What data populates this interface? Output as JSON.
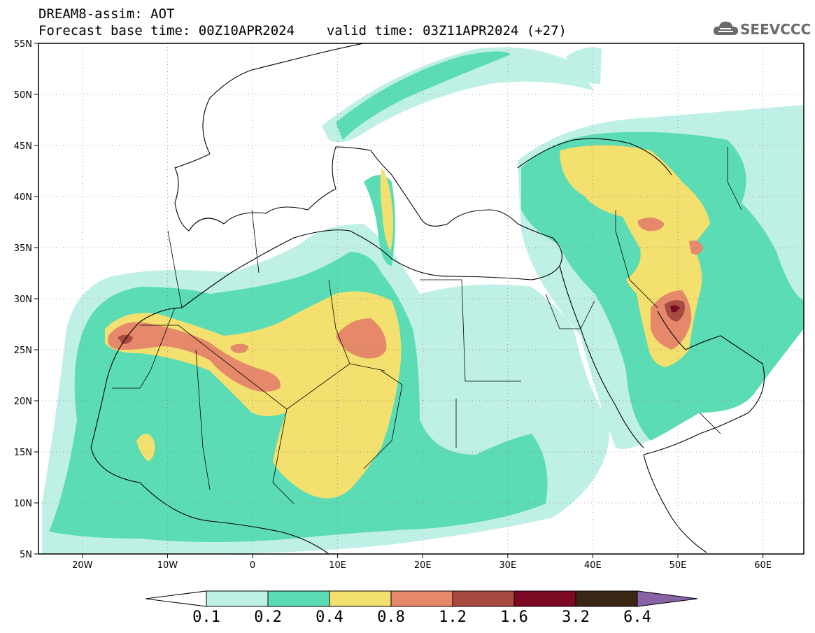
{
  "header": {
    "model": "DREAM8-assim: AOT",
    "base_time_label": "Forecast base time: 00Z10APR2024",
    "valid_time_label": "valid time: 03Z11APR2024 (+27)"
  },
  "logo": {
    "text": "SEEVCCC",
    "icon": "cloud-icon"
  },
  "map": {
    "projection": "lat-lon",
    "lon_range": [
      -25,
      65
    ],
    "lat_range": [
      5,
      55
    ],
    "lat_ticks": [
      "55N",
      "50N",
      "45N",
      "40N",
      "35N",
      "30N",
      "25N",
      "20N",
      "15N",
      "10N",
      "5N"
    ],
    "lon_ticks": [
      "20W",
      "10W",
      "0",
      "10E",
      "20E",
      "30E",
      "40E",
      "50E",
      "60E"
    ],
    "grid": "dotted"
  },
  "colorbar": {
    "labels": [
      "0.1",
      "0.2",
      "0.4",
      "0.8",
      "1.2",
      "1.6",
      "3.2",
      "6.4"
    ],
    "colors": {
      "under": "#ffffff",
      "c1": "#bff0e6",
      "c2": "#5cdcb4",
      "c3": "#f3e06e",
      "c4": "#e5896a",
      "c5": "#a84a3f",
      "c6": "#7c0a24",
      "c7": "#3b2515",
      "over": "#8a63a6"
    }
  }
}
